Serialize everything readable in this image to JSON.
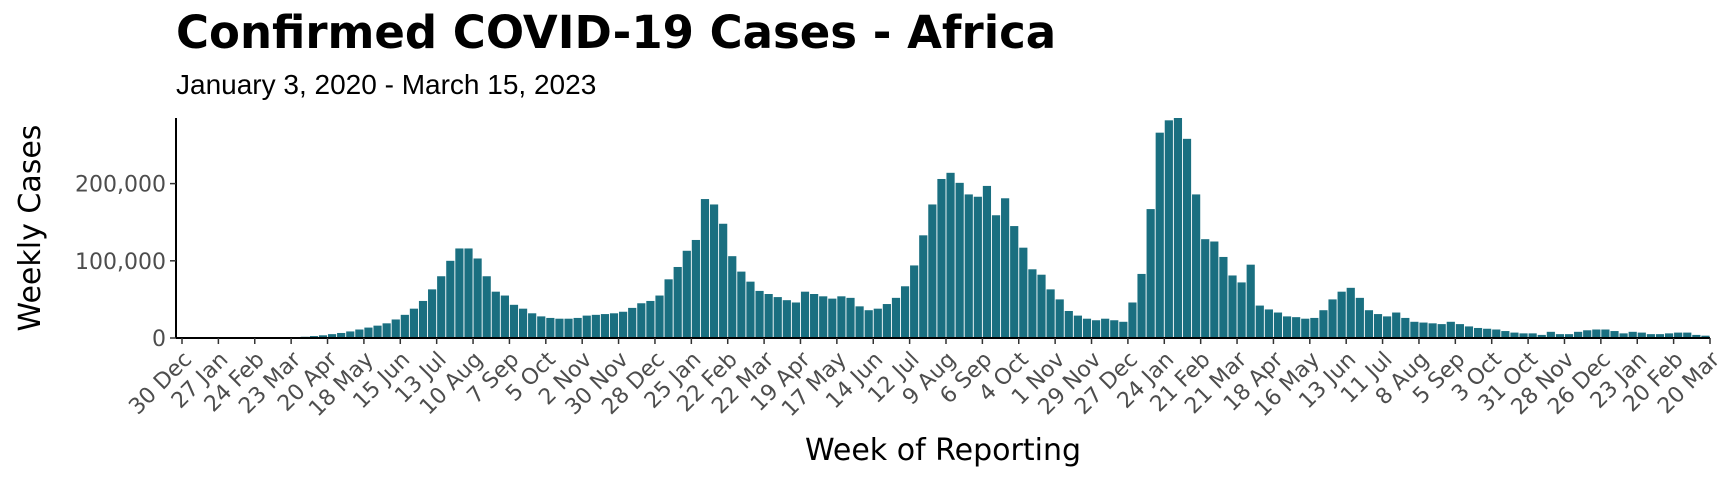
{
  "chart_data": {
    "type": "bar",
    "title": "Confirmed COVID-19 Cases - Africa",
    "subtitle": "January 3, 2020 - March 15, 2023",
    "xlabel": "Week of Reporting",
    "ylabel": "Weekly Cases",
    "bar_color": "#1a6f80",
    "ylim": [
      0,
      285000
    ],
    "y_ticks": [
      0,
      100000,
      200000
    ],
    "y_tick_labels": [
      "0",
      "100,000",
      "200,000"
    ],
    "grid": false,
    "x_start": "2019-12-30",
    "x_end": "2023-03-20",
    "x_tick_labels": [
      "30 Dec",
      "27 Jan",
      "24 Feb",
      "23 Mar",
      "20 Apr",
      "18 May",
      "15 Jun",
      "13 Jul",
      "10 Aug",
      "7 Sep",
      "5 Oct",
      "2 Nov",
      "30 Nov",
      "28 Dec",
      "25 Jan",
      "22 Feb",
      "22 Mar",
      "19 Apr",
      "17 May",
      "14 Jun",
      "12 Jul",
      "9 Aug",
      "6 Sep",
      "4 Oct",
      "1 Nov",
      "29 Nov",
      "27 Dec",
      "24 Jan",
      "21 Feb",
      "21 Mar",
      "18 Apr",
      "16 May",
      "13 Jun",
      "11 Jul",
      "8 Aug",
      "5 Sep",
      "3 Oct",
      "31 Oct",
      "28 Nov",
      "26 Dec",
      "23 Jan",
      "20 Feb",
      "20 Mar"
    ],
    "x_tick_dates": [
      "2019-12-30",
      "2020-01-27",
      "2020-02-24",
      "2020-03-23",
      "2020-04-20",
      "2020-05-18",
      "2020-06-15",
      "2020-07-13",
      "2020-08-10",
      "2020-09-07",
      "2020-10-05",
      "2020-11-02",
      "2020-11-30",
      "2020-12-28",
      "2021-01-25",
      "2021-02-22",
      "2021-03-22",
      "2021-04-19",
      "2021-05-17",
      "2021-06-14",
      "2021-07-12",
      "2021-08-09",
      "2021-09-06",
      "2021-10-04",
      "2021-11-01",
      "2021-11-29",
      "2021-12-27",
      "2022-01-24",
      "2022-02-21",
      "2022-03-21",
      "2022-04-18",
      "2022-05-16",
      "2022-06-13",
      "2022-07-11",
      "2022-08-08",
      "2022-09-05",
      "2022-10-03",
      "2022-10-31",
      "2022-11-28",
      "2022-12-26",
      "2023-01-23",
      "2023-02-20",
      "2023-03-20"
    ],
    "week_dates": [
      "2019-12-30",
      "2020-01-06",
      "2020-01-13",
      "2020-01-20",
      "2020-01-27",
      "2020-02-03",
      "2020-02-10",
      "2020-02-17",
      "2020-02-24",
      "2020-03-02",
      "2020-03-09",
      "2020-03-16",
      "2020-03-23",
      "2020-03-30",
      "2020-04-06",
      "2020-04-13",
      "2020-04-20",
      "2020-04-27",
      "2020-05-04",
      "2020-05-11",
      "2020-05-18",
      "2020-05-25",
      "2020-06-01",
      "2020-06-08",
      "2020-06-15",
      "2020-06-22",
      "2020-06-29",
      "2020-07-06",
      "2020-07-13",
      "2020-07-20",
      "2020-07-27",
      "2020-08-03",
      "2020-08-10",
      "2020-08-17",
      "2020-08-24",
      "2020-08-31",
      "2020-09-07",
      "2020-09-14",
      "2020-09-21",
      "2020-09-28",
      "2020-10-05",
      "2020-10-12",
      "2020-10-19",
      "2020-10-26",
      "2020-11-02",
      "2020-11-09",
      "2020-11-16",
      "2020-11-23",
      "2020-11-30",
      "2020-12-07",
      "2020-12-14",
      "2020-12-21",
      "2020-12-28",
      "2021-01-04",
      "2021-01-11",
      "2021-01-18",
      "2021-01-25",
      "2021-02-01",
      "2021-02-08",
      "2021-02-15",
      "2021-02-22",
      "2021-03-01",
      "2021-03-08",
      "2021-03-15",
      "2021-03-22",
      "2021-03-29",
      "2021-04-05",
      "2021-04-12",
      "2021-04-19",
      "2021-04-26",
      "2021-05-03",
      "2021-05-10",
      "2021-05-17",
      "2021-05-24",
      "2021-05-31",
      "2021-06-07",
      "2021-06-14",
      "2021-06-21",
      "2021-06-28",
      "2021-07-05",
      "2021-07-12",
      "2021-07-19",
      "2021-07-26",
      "2021-08-02",
      "2021-08-09",
      "2021-08-16",
      "2021-08-23",
      "2021-08-30",
      "2021-09-06",
      "2021-09-13",
      "2021-09-20",
      "2021-09-27",
      "2021-10-04",
      "2021-10-11",
      "2021-10-18",
      "2021-10-25",
      "2021-11-01",
      "2021-11-08",
      "2021-11-15",
      "2021-11-22",
      "2021-11-29",
      "2021-12-06",
      "2021-12-13",
      "2021-12-20",
      "2021-12-27",
      "2022-01-03",
      "2022-01-10",
      "2022-01-17",
      "2022-01-24",
      "2022-01-31",
      "2022-02-07",
      "2022-02-14",
      "2022-02-21",
      "2022-02-28",
      "2022-03-07",
      "2022-03-14",
      "2022-03-21",
      "2022-03-28",
      "2022-04-04",
      "2022-04-11",
      "2022-04-18",
      "2022-04-25",
      "2022-05-02",
      "2022-05-09",
      "2022-05-16",
      "2022-05-23",
      "2022-05-30",
      "2022-06-06",
      "2022-06-13",
      "2022-06-20",
      "2022-06-27",
      "2022-07-04",
      "2022-07-11",
      "2022-07-18",
      "2022-07-25",
      "2022-08-01",
      "2022-08-08",
      "2022-08-15",
      "2022-08-22",
      "2022-08-29",
      "2022-09-05",
      "2022-09-12",
      "2022-09-19",
      "2022-09-26",
      "2022-10-03",
      "2022-10-10",
      "2022-10-17",
      "2022-10-24",
      "2022-10-31",
      "2022-11-07",
      "2022-11-14",
      "2022-11-21",
      "2022-11-28",
      "2022-12-05",
      "2022-12-12",
      "2022-12-19",
      "2022-12-26",
      "2023-01-02",
      "2023-01-09",
      "2023-01-16",
      "2023-01-23",
      "2023-01-30",
      "2023-02-06",
      "2023-02-13",
      "2023-02-20",
      "2023-02-27",
      "2023-03-06",
      "2023-03-13"
    ],
    "values": [
      0,
      0,
      0,
      0,
      0,
      0,
      0,
      0,
      0,
      0,
      100,
      400,
      1200,
      1600,
      2500,
      3500,
      5000,
      6500,
      8500,
      11000,
      13500,
      16000,
      19000,
      24000,
      30000,
      38000,
      48000,
      63000,
      80000,
      100000,
      116000,
      116000,
      103000,
      80000,
      60000,
      55000,
      43000,
      38000,
      32000,
      28000,
      26000,
      25000,
      25000,
      26000,
      29000,
      30000,
      31000,
      32000,
      34000,
      39000,
      45000,
      48000,
      55000,
      76000,
      92000,
      113000,
      127000,
      180000,
      173000,
      148000,
      106000,
      86000,
      73000,
      61000,
      57000,
      53000,
      49000,
      46000,
      60000,
      57000,
      54000,
      51000,
      54000,
      52000,
      41000,
      36000,
      38000,
      44000,
      52000,
      67000,
      94000,
      133000,
      173000,
      206000,
      214000,
      201000,
      186000,
      183000,
      197000,
      159000,
      181000,
      145000,
      117000,
      89000,
      82000,
      63000,
      50000,
      35000,
      29000,
      25000,
      23000,
      25000,
      23000,
      21000,
      46000,
      83000,
      167000,
      266000,
      282000,
      285000,
      258000,
      186000,
      128000,
      125000,
      105000,
      81000,
      72000,
      95000,
      42000,
      37000,
      33000,
      28000,
      27000,
      25000,
      26000,
      36000,
      50000,
      60000,
      65000,
      52000,
      36000,
      31000,
      28000,
      33000,
      26000,
      21000,
      20000,
      19000,
      18000,
      21000,
      18000,
      15000,
      13000,
      12000,
      11000,
      9000,
      7000,
      6000,
      6000,
      4000,
      8000,
      5000,
      5000,
      8000,
      10000,
      11000,
      11000,
      9000,
      6000,
      8000,
      7000,
      5000,
      5000,
      6000,
      7000,
      7000,
      4000,
      3000,
      2500,
      4000,
      2500,
      1500
    ]
  }
}
